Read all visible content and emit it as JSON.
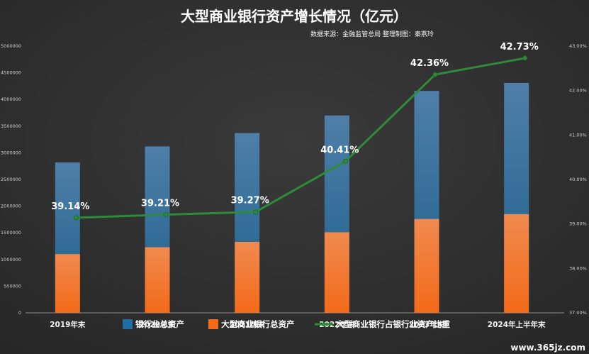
{
  "chart_data": {
    "type": "bar",
    "title": "大型商业银行资产增长情况（亿元）",
    "subtitle": "数据来源：金融监管总局 整理制图：秦燕玲",
    "categories": [
      "2019年末",
      "2020年末",
      "2021年末",
      "2022年末",
      "2023年末",
      "2024年上半年末"
    ],
    "series": [
      {
        "name": "银行业总资产",
        "kind": "bar",
        "axis": "left",
        "values": [
          2820000,
          3120000,
          3370000,
          3700000,
          4160000,
          4310000
        ]
      },
      {
        "name": "大型商业银行总资产",
        "kind": "bar",
        "axis": "left",
        "values": [
          1100000,
          1230000,
          1330000,
          1510000,
          1760000,
          1850000
        ]
      },
      {
        "name": "大型商业银行占银行业资产比重",
        "kind": "line",
        "axis": "right",
        "values": [
          39.14,
          39.21,
          39.27,
          40.41,
          42.36,
          42.73
        ],
        "labels": [
          "39.14%",
          "39.21%",
          "39.27%",
          "40.41%",
          "42.36%",
          "42.73%"
        ]
      }
    ],
    "y_left": {
      "min": 0,
      "max": 5000000,
      "ticks": [
        "0",
        "500000",
        "1000000",
        "1500000",
        "2000000",
        "2500000",
        "3000000",
        "3500000",
        "4000000",
        "4500000",
        "5000000"
      ]
    },
    "y_right": {
      "min": 37,
      "max": 43,
      "ticks": [
        "37.00%",
        "38.00%",
        "39.00%",
        "40.00%",
        "41.00%",
        "42.00%",
        "43.00%"
      ]
    },
    "grid": false,
    "legend_position": "bottom",
    "colors": {
      "total": "#2e75b6",
      "big": "#ed7d31",
      "line": "#2e8b3a",
      "background": "#2b2b2b"
    }
  },
  "watermark": "www.365jz.com"
}
